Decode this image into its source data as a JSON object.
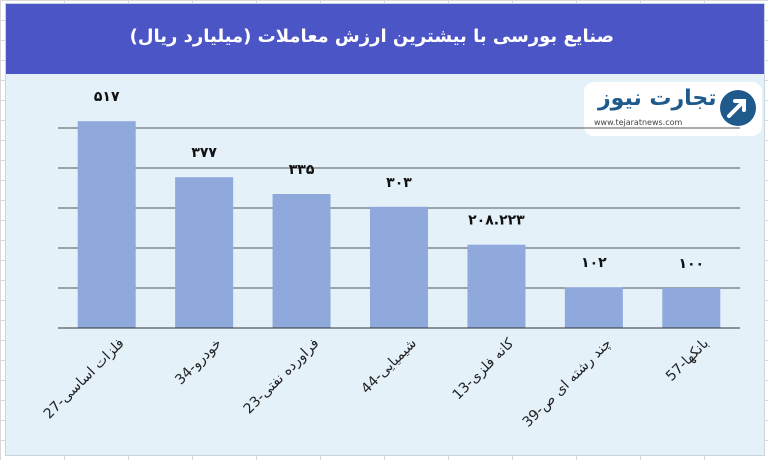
{
  "title": "صنایع بورسی با بیشترین ارزش معاملات  (میلیارد ریال)",
  "logo": {
    "name": "تجارت نیوز",
    "url": "www.tejaratnews.com"
  },
  "colors": {
    "header": "#4b55c6",
    "bar": "#8fa9dc",
    "panel": "#e4f1f9",
    "grid": "#555555"
  },
  "chart_data": {
    "type": "bar",
    "categories": [
      "27-فلزات اساسی",
      "34-خودرو",
      "23-فراورده نفتی",
      "44-شیمیایی",
      "13-کانه فلزی",
      "39-چند رشته ای ص",
      "57-بانکها"
    ],
    "values": [
      517,
      377,
      335,
      303,
      208.223,
      102,
      100
    ],
    "data_labels": [
      "۵۱۷",
      "۳۷۷",
      "۳۳۵",
      "۳۰۳",
      "۲۰۸.۲۲۳",
      "۱۰۲",
      "۱۰۰"
    ],
    "ylim": [
      0,
      600
    ],
    "grid": true,
    "legend": "none"
  }
}
